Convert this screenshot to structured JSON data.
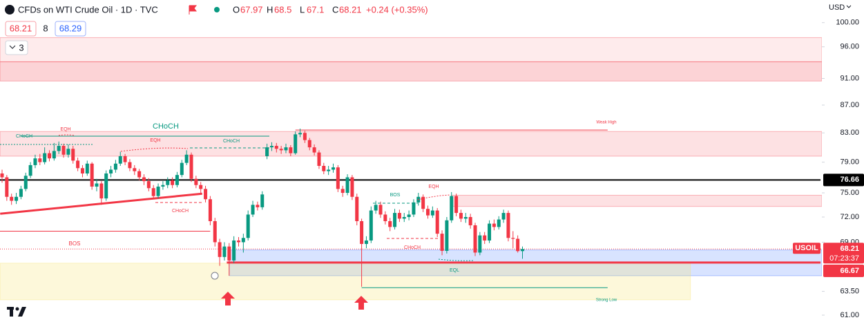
{
  "chart_data": {
    "type": "candlestick",
    "title": "CFDs on WTI Crude Oil · 1D · TVC",
    "ohlc_header": {
      "o_label": "O",
      "open": 67.97,
      "h_label": "H",
      "high": 68.5,
      "l_label": "L",
      "low": 67.1,
      "c_label": "C",
      "close": 68.21,
      "change": "+0.24 (+0.35%)"
    },
    "widgets": {
      "bid": 68.21,
      "spread": 8,
      "ask": 68.29,
      "collapsed": 3
    },
    "currency": "USD",
    "symbol": "USOIL",
    "last_price": 68.21,
    "countdown": "07:23:37",
    "up_color": "#089981",
    "down_color": "#f23645",
    "log_scale": true,
    "grid": false,
    "ylim": [
      60.5,
      103.9
    ],
    "yticks": [
      {
        "value": 100,
        "label": "100.00"
      },
      {
        "value": 96,
        "label": "96.00"
      },
      {
        "value": 91,
        "label": "91.00"
      },
      {
        "value": 87,
        "label": "87.00"
      },
      {
        "value": 83,
        "label": "83.00"
      },
      {
        "value": 79,
        "label": "79.00"
      },
      {
        "value": 75,
        "label": "75.00"
      },
      {
        "value": 72,
        "label": "72.00"
      },
      {
        "value": 69,
        "label": "69.00"
      },
      {
        "value": 63.5,
        "label": "63.50"
      },
      {
        "value": 61,
        "label": "61.00"
      }
    ],
    "open": [
      77.5,
      77.0,
      74.5,
      74.0,
      74.5,
      75.5,
      77.2,
      78.6,
      79.5,
      79.0,
      80.2,
      79.5,
      80.5,
      81.2,
      80.0,
      80.8,
      79.2,
      78.2,
      77.5,
      78.8,
      75.8,
      76.2,
      74.3,
      77.5,
      78.0,
      78.8,
      79.8,
      79.0,
      78.2,
      77.8,
      77.0,
      76.5,
      75.6,
      74.6,
      75.8,
      76.0,
      76.6,
      76.0,
      77.3,
      78.9,
      80.0,
      76.8,
      76.0,
      75.5,
      74.2,
      71.5,
      69.0,
      67.3,
      68.5,
      66.9,
      69.2,
      69.0,
      69.5,
      72.3,
      73.5,
      73.2,
      79.8,
      81.0,
      81.2,
      80.8,
      80.6,
      81.0,
      80.2,
      82.8,
      83.0,
      82.0,
      81.0,
      80.3,
      78.5,
      77.8,
      78.0,
      78.3,
      75.5,
      75.0,
      77.0,
      74.5,
      71.5,
      68.8,
      69.2,
      72.8,
      73.5,
      72.3,
      71.5,
      70.8,
      72.5,
      71.8,
      72.0,
      72.3,
      73.8,
      74.5,
      73.0,
      72.2,
      72.8,
      70.0,
      68.0,
      71.6,
      74.6,
      72.5,
      71.8,
      72.0,
      71.0,
      67.8,
      69.8,
      69.2,
      71.2,
      70.8,
      71.7,
      72.5,
      69.5,
      69.4,
      67.97
    ],
    "high": [
      78.0,
      77.3,
      74.9,
      75.0,
      75.9,
      77.6,
      79.0,
      80.0,
      80.1,
      81.0,
      80.6,
      81.6,
      81.8,
      81.5,
      81.4,
      81.2,
      79.6,
      78.6,
      79.2,
      79.0,
      76.8,
      76.5,
      77.9,
      78.5,
      79.3,
      80.4,
      80.1,
      79.4,
      78.6,
      78.1,
      77.4,
      76.9,
      76.0,
      76.2,
      76.5,
      77.0,
      77.0,
      77.7,
      79.3,
      80.6,
      80.3,
      77.2,
      76.4,
      75.9,
      74.6,
      71.9,
      69.4,
      69.0,
      68.9,
      69.7,
      69.6,
      70.0,
      72.8,
      74.0,
      73.9,
      75.2,
      81.5,
      81.7,
      81.6,
      81.2,
      81.5,
      81.3,
      83.2,
      83.6,
      83.3,
      82.3,
      81.4,
      80.6,
      78.9,
      78.5,
      78.8,
      78.6,
      75.9,
      77.4,
      77.3,
      74.9,
      71.8,
      69.7,
      73.3,
      74.0,
      73.9,
      72.7,
      71.9,
      73.0,
      72.9,
      72.5,
      72.8,
      74.2,
      75.0,
      74.8,
      73.4,
      73.3,
      73.1,
      70.4,
      72.0,
      75.1,
      74.9,
      72.9,
      72.5,
      72.4,
      71.3,
      70.2,
      70.2,
      71.6,
      71.7,
      72.1,
      72.9,
      72.8,
      70.3,
      69.8,
      68.5
    ],
    "low": [
      76.3,
      74.0,
      73.5,
      73.6,
      74.2,
      75.2,
      76.9,
      78.2,
      78.6,
      78.7,
      79.1,
      79.2,
      80.1,
      79.6,
      79.6,
      78.8,
      77.8,
      77.0,
      77.2,
      75.4,
      75.2,
      73.5,
      74.0,
      77.0,
      77.6,
      78.5,
      78.6,
      77.8,
      77.3,
      76.6,
      76.0,
      75.2,
      74.2,
      74.3,
      75.4,
      75.6,
      75.6,
      75.7,
      77.0,
      78.6,
      76.4,
      75.6,
      75.0,
      73.8,
      71.0,
      68.5,
      66.3,
      66.9,
      65.2,
      66.6,
      68.5,
      67.8,
      69.2,
      72.0,
      72.8,
      72.9,
      79.4,
      80.5,
      80.3,
      80.1,
      80.2,
      79.8,
      80.0,
      82.4,
      81.6,
      80.6,
      79.9,
      78.1,
      77.4,
      77.3,
      77.6,
      75.1,
      74.5,
      74.7,
      74.1,
      71.0,
      64.0,
      68.3,
      68.9,
      72.4,
      71.9,
      71.1,
      70.3,
      70.5,
      71.4,
      71.4,
      71.6,
      72.0,
      73.4,
      72.6,
      71.8,
      71.9,
      69.6,
      67.5,
      67.7,
      71.3,
      72.1,
      71.4,
      71.3,
      70.6,
      67.4,
      67.5,
      68.8,
      68.9,
      70.4,
      70.5,
      71.3,
      69.1,
      68.3,
      67.8,
      67.1
    ],
    "close": [
      77.0,
      74.5,
      74.0,
      74.5,
      75.5,
      77.2,
      78.6,
      79.5,
      79.0,
      80.2,
      79.5,
      80.5,
      81.2,
      80.0,
      80.8,
      79.2,
      78.2,
      77.5,
      78.8,
      75.8,
      76.2,
      74.3,
      77.5,
      78.0,
      78.8,
      79.8,
      79.0,
      78.2,
      77.8,
      77.0,
      76.5,
      75.6,
      74.6,
      75.8,
      76.0,
      76.6,
      76.0,
      77.3,
      78.9,
      80.0,
      76.8,
      76.0,
      75.5,
      74.2,
      71.5,
      69.0,
      67.3,
      68.5,
      66.9,
      69.2,
      69.0,
      69.5,
      72.3,
      73.5,
      73.2,
      74.8,
      81.0,
      81.2,
      80.8,
      80.6,
      81.0,
      80.2,
      82.8,
      83.0,
      82.0,
      81.0,
      80.3,
      78.5,
      77.8,
      78.0,
      78.3,
      75.5,
      75.0,
      77.0,
      74.5,
      71.5,
      68.8,
      69.2,
      72.8,
      73.5,
      72.3,
      71.5,
      70.8,
      72.5,
      71.8,
      72.0,
      72.3,
      73.8,
      74.5,
      73.0,
      72.2,
      72.8,
      70.0,
      68.0,
      71.6,
      74.6,
      72.5,
      71.8,
      72.0,
      71.0,
      67.8,
      69.8,
      69.2,
      71.2,
      70.8,
      71.7,
      72.5,
      69.5,
      69.4,
      67.97,
      68.21
    ],
    "zones": [
      {
        "top": 97.5,
        "bottom": 93.6,
        "from": -1,
        "to": 174,
        "color": "#f23645",
        "opacity": 0.1
      },
      {
        "top": 93.6,
        "bottom": 90.6,
        "from": -1,
        "to": 174,
        "color": "#f23645",
        "opacity": 0.22
      },
      {
        "top": 83.2,
        "bottom": 79.8,
        "from": -1,
        "to": 174,
        "color": "#f23645",
        "opacity": 0.15
      },
      {
        "top": 74.7,
        "bottom": 73.3,
        "from": 95,
        "to": 174,
        "color": "#f23645",
        "opacity": 0.15
      },
      {
        "top": 68.1,
        "bottom": 65.2,
        "from": 48,
        "to": 174,
        "color": "#2962ff",
        "opacity": 0.18
      },
      {
        "top": 66.6,
        "bottom": 62.6,
        "from": -1,
        "to": 145.5,
        "color": "#f7e36b",
        "opacity": 0.25
      }
    ],
    "levels": [
      {
        "price": 76.66,
        "from": -1,
        "to": 173,
        "color": "#000000",
        "width": 2
      },
      {
        "price": 66.67,
        "from": 47.5,
        "to": 173,
        "color": "#f23645",
        "width": 3
      },
      {
        "price": 70.3,
        "from": -1,
        "to": 44,
        "color": "#f23645",
        "width": 1
      },
      {
        "price": 83.4,
        "from": 62,
        "to": 128,
        "color": "#f23645",
        "width": 1
      },
      {
        "price": 63.9,
        "from": 76,
        "to": 128,
        "color": "#089981",
        "width": 1
      }
    ],
    "trendline": {
      "from": -0.4,
      "to": 42.3,
      "start": 72.4,
      "end": 74.9,
      "color": "#f23645"
    },
    "annotations": [
      "CHoCH",
      "CHoCH",
      "EQH",
      "EQH",
      "CHoCH",
      "CHoCH",
      "BOS",
      "BOS",
      "EQH",
      "CHoCH",
      "EQL",
      "Weak High",
      "Strong Low"
    ]
  }
}
